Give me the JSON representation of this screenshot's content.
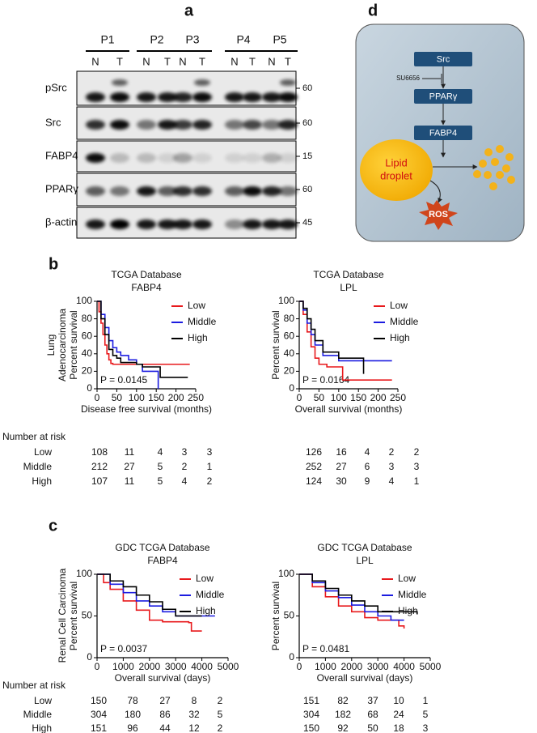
{
  "panels": {
    "a": "a",
    "b": "b",
    "c": "c",
    "d": "d"
  },
  "blot": {
    "patients": [
      "P1",
      "P2",
      "P3",
      "P4",
      "P5"
    ],
    "lanes": [
      "N",
      "T",
      "N",
      "T",
      "N",
      "T",
      "N",
      "T",
      "N",
      "T"
    ],
    "proteins": [
      "pSrc",
      "Src",
      "FABP4",
      "PPARγ",
      "β-actin"
    ],
    "markers": [
      60,
      60,
      15,
      60,
      45
    ]
  },
  "diagram": {
    "nodes": [
      "Src",
      "PPARγ",
      "FABP4"
    ],
    "inhibitor": "SU6656",
    "droplet": [
      "Lipid",
      "droplet"
    ],
    "ros": "ROS"
  },
  "groups": {
    "b": [
      "Lung",
      "Adenocarcinoma"
    ],
    "c": "Renal Cell Carcinoma"
  },
  "risk_header": "Number at risk",
  "risk_rows": [
    "Low",
    "Middle",
    "High"
  ],
  "chart_data": [
    {
      "type": "line",
      "title": [
        "TCGA Database",
        "FABP4"
      ],
      "x_label": "Disease free survival (months)",
      "y_label": "Percent survival",
      "xlim": [
        0,
        250
      ],
      "xticks": [
        0,
        50,
        100,
        150,
        200,
        250
      ],
      "ylim": [
        0,
        100
      ],
      "yticks": [
        0,
        20,
        40,
        60,
        80,
        100
      ],
      "annotation": "P = 0.0145",
      "series": [
        {
          "name": "Low",
          "color": "#e8191c",
          "x": [
            0,
            5,
            10,
            15,
            20,
            25,
            30,
            35,
            40,
            60,
            235
          ],
          "values": [
            100,
            88,
            75,
            62,
            50,
            40,
            33,
            29,
            28,
            28,
            28
          ]
        },
        {
          "name": "Middle",
          "color": "#1c1ce0",
          "x": [
            0,
            10,
            20,
            30,
            40,
            50,
            60,
            80,
            100,
            115,
            150,
            155
          ],
          "values": [
            100,
            85,
            70,
            55,
            47,
            42,
            38,
            33,
            28,
            20,
            20,
            0
          ]
        },
        {
          "name": "High",
          "color": "#000000",
          "x": [
            0,
            10,
            20,
            30,
            40,
            50,
            60,
            100,
            115,
            160,
            230
          ],
          "values": [
            100,
            80,
            62,
            45,
            38,
            35,
            30,
            28,
            25,
            13,
            13
          ]
        }
      ],
      "risk_table": [
        [
          108,
          11,
          4,
          3,
          3
        ],
        [
          212,
          27,
          5,
          2,
          1
        ],
        [
          107,
          11,
          5,
          4,
          2
        ]
      ]
    },
    {
      "type": "line",
      "title": [
        "TCGA Database",
        "LPL"
      ],
      "x_label": "Overall survival (months)",
      "y_label": "Percent survival",
      "xlim": [
        0,
        250
      ],
      "xticks": [
        0,
        50,
        100,
        150,
        200,
        250
      ],
      "ylim": [
        0,
        100
      ],
      "yticks": [
        0,
        20,
        40,
        60,
        80,
        100
      ],
      "annotation": "P = 0.0164",
      "series": [
        {
          "name": "Low",
          "color": "#e8191c",
          "x": [
            0,
            10,
            20,
            30,
            40,
            50,
            70,
            110,
            235
          ],
          "values": [
            100,
            85,
            65,
            48,
            35,
            28,
            25,
            10,
            10
          ]
        },
        {
          "name": "Middle",
          "color": "#1c1ce0",
          "x": [
            0,
            10,
            20,
            30,
            40,
            60,
            100,
            235
          ],
          "values": [
            100,
            90,
            75,
            62,
            50,
            38,
            32,
            32
          ]
        },
        {
          "name": "High",
          "color": "#000000",
          "x": [
            0,
            10,
            20,
            30,
            40,
            60,
            100,
            160,
            163
          ],
          "values": [
            100,
            92,
            80,
            68,
            55,
            42,
            35,
            35,
            17
          ]
        }
      ],
      "risk_table": [
        [
          126,
          16,
          4,
          2,
          2
        ],
        [
          252,
          27,
          6,
          3,
          3
        ],
        [
          124,
          30,
          9,
          4,
          1
        ]
      ]
    },
    {
      "type": "line",
      "title": [
        "GDC TCGA Database",
        "FABP4"
      ],
      "x_label": "Overall survival (days)",
      "y_label": "Percent survival",
      "xlim": [
        0,
        5000
      ],
      "xticks": [
        0,
        1000,
        2000,
        3000,
        4000,
        5000
      ],
      "ylim": [
        0,
        100
      ],
      "yticks": [
        0,
        50,
        100
      ],
      "annotation": "P = 0.0037",
      "series": [
        {
          "name": "Low",
          "color": "#e8191c",
          "x": [
            0,
            250,
            500,
            1000,
            1500,
            2000,
            2500,
            3500,
            3600,
            4000
          ],
          "values": [
            100,
            90,
            82,
            68,
            57,
            45,
            43,
            42,
            32,
            32
          ]
        },
        {
          "name": "Middle",
          "color": "#1c1ce0",
          "x": [
            0,
            500,
            1000,
            1500,
            2000,
            2500,
            3000,
            4500
          ],
          "values": [
            100,
            88,
            78,
            68,
            62,
            55,
            50,
            50
          ]
        },
        {
          "name": "High",
          "color": "#000000",
          "x": [
            0,
            500,
            1000,
            1500,
            2000,
            2500,
            3000,
            4000
          ],
          "values": [
            100,
            92,
            85,
            75,
            67,
            58,
            50,
            50
          ]
        }
      ],
      "risk_table": [
        [
          150,
          78,
          27,
          8,
          2
        ],
        [
          304,
          180,
          86,
          32,
          5
        ],
        [
          151,
          96,
          44,
          12,
          2
        ]
      ]
    },
    {
      "type": "line",
      "title": [
        "GDC TCGA Database",
        "LPL"
      ],
      "x_label": "Overall survival (days)",
      "y_label": "Percent survival",
      "xlim": [
        0,
        5000
      ],
      "xticks": [
        0,
        1000,
        2000,
        3000,
        4000,
        5000
      ],
      "ylim": [
        0,
        100
      ],
      "yticks": [
        0,
        50,
        100
      ],
      "annotation": "P = 0.0481",
      "series": [
        {
          "name": "Low",
          "color": "#e8191c",
          "x": [
            0,
            500,
            1000,
            1500,
            2000,
            2500,
            3000,
            3800,
            4000
          ],
          "values": [
            100,
            85,
            73,
            62,
            55,
            48,
            45,
            38,
            35
          ]
        },
        {
          "name": "Middle",
          "color": "#1c1ce0",
          "x": [
            0,
            500,
            1000,
            1500,
            2000,
            2500,
            3000,
            3500,
            4000
          ],
          "values": [
            100,
            90,
            80,
            72,
            63,
            55,
            50,
            45,
            45
          ]
        },
        {
          "name": "High",
          "color": "#000000",
          "x": [
            0,
            500,
            1000,
            1500,
            2000,
            2500,
            3000,
            4500
          ],
          "values": [
            100,
            92,
            83,
            75,
            68,
            62,
            55,
            52
          ]
        }
      ],
      "risk_table": [
        [
          151,
          82,
          37,
          10,
          1
        ],
        [
          304,
          182,
          68,
          24,
          5
        ],
        [
          150,
          92,
          50,
          18,
          3
        ]
      ]
    }
  ]
}
